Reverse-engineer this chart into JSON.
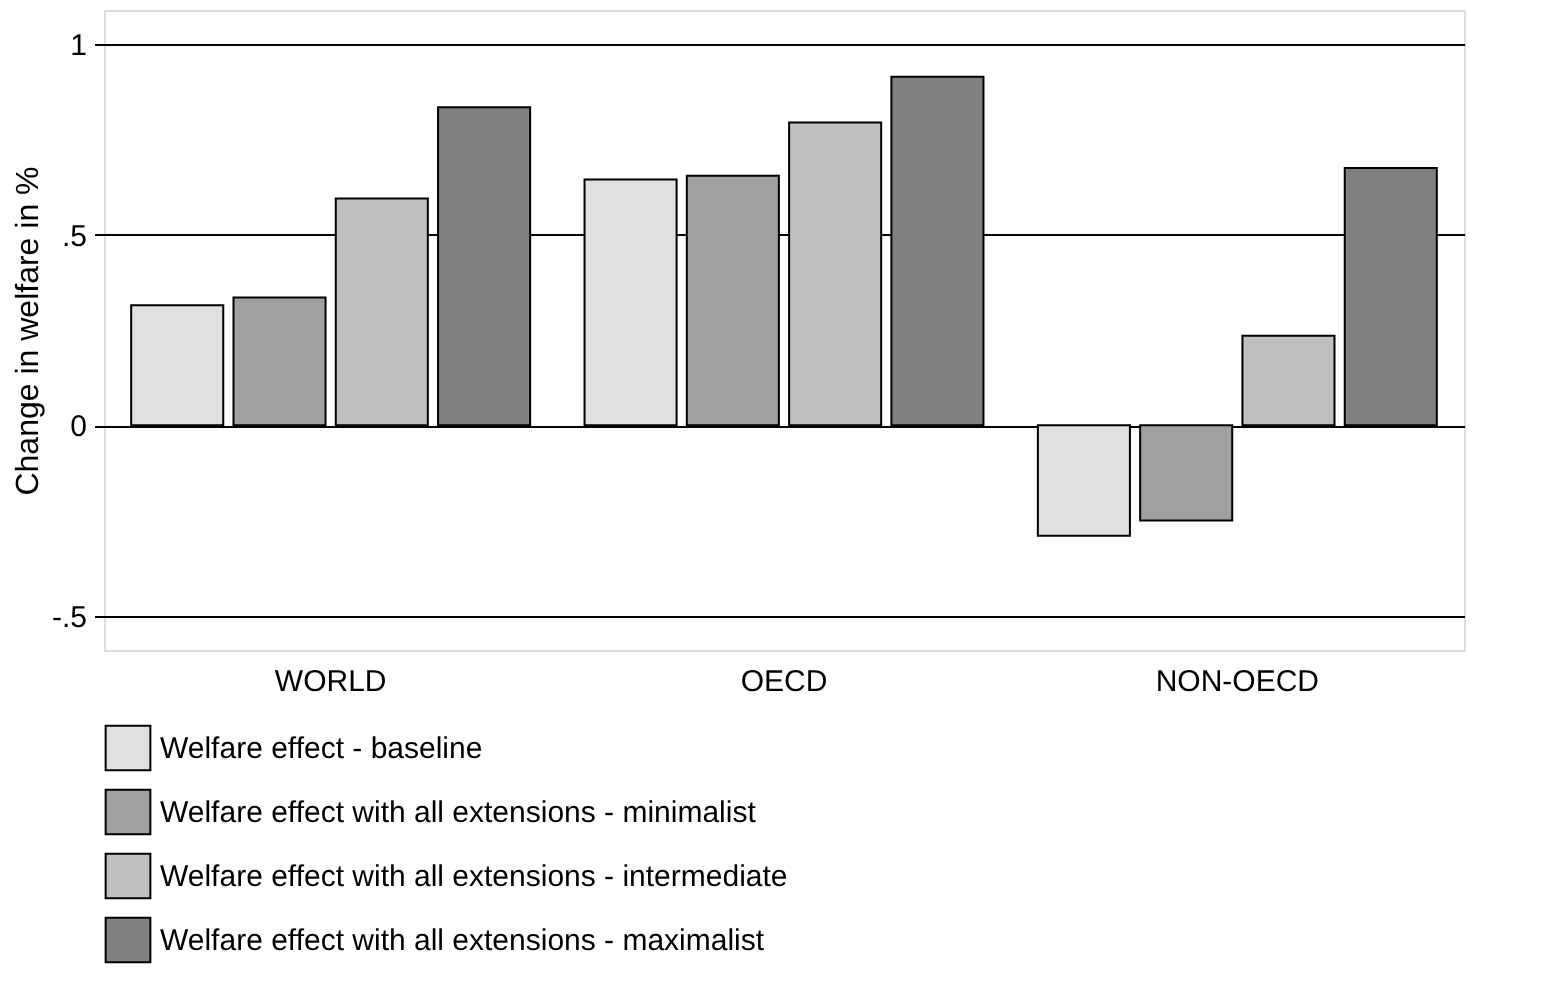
{
  "chart_data": {
    "type": "bar",
    "ylabel": "Change in welfare in %",
    "categories": [
      "WORLD",
      "OECD",
      "NON-OECD"
    ],
    "series": [
      {
        "name": "Welfare effect - baseline",
        "color": "#e0e0e0",
        "values": [
          0.315,
          0.645,
          -0.29
        ]
      },
      {
        "name": "Welfare effect with all extensions - minimalist",
        "color": "#a0a0a0",
        "values": [
          0.335,
          0.655,
          -0.25
        ]
      },
      {
        "name": "Welfare effect with all extensions - intermediate",
        "color": "#c0c0c0",
        "values": [
          0.595,
          0.795,
          0.235
        ]
      },
      {
        "name": "Welfare effect with all extensions - maximalist",
        "color": "#808080",
        "values": [
          0.835,
          0.915,
          0.675
        ]
      }
    ],
    "ylim": [
      -0.59,
      1.09
    ],
    "yticks": [
      {
        "value": -0.5,
        "label": "-.5"
      },
      0,
      {
        "value": 0.5,
        "label": ".5"
      },
      1
    ],
    "grid": "y",
    "legend": "bottom"
  }
}
